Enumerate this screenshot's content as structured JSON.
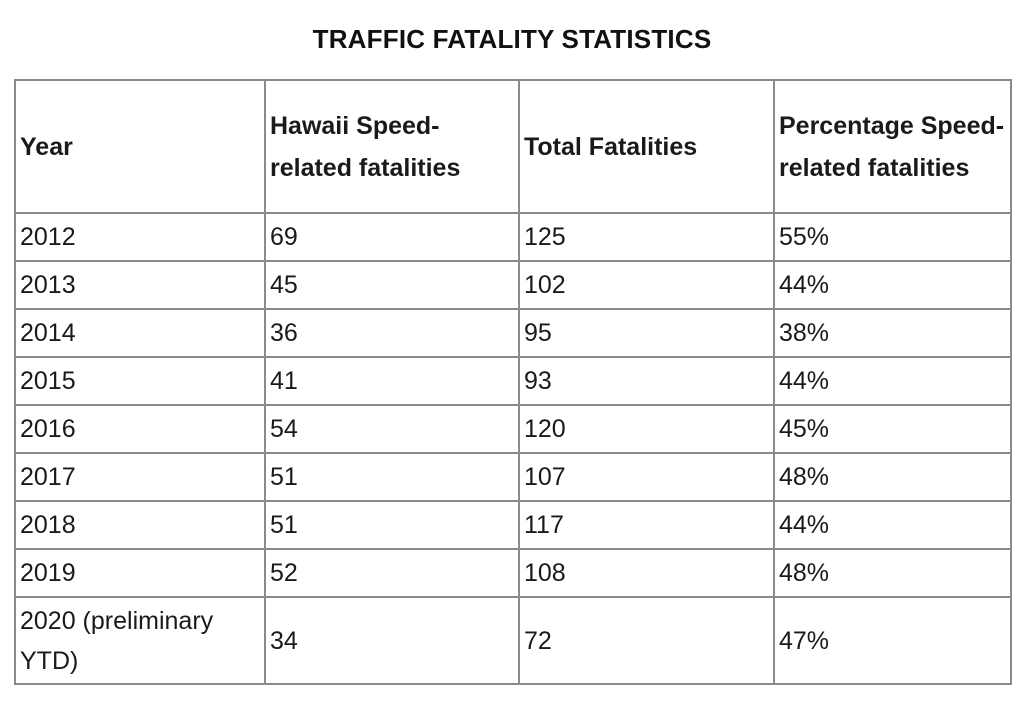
{
  "title": "TRAFFIC FATALITY STATISTICS",
  "table": {
    "headers": [
      "Year",
      "Hawaii Speed-related fatalities",
      "Total Fatalities",
      "Percentage Speed-related fatalities"
    ],
    "rows": [
      [
        "2012",
        "69",
        "125",
        "55%"
      ],
      [
        "2013",
        "45",
        "102",
        "44%"
      ],
      [
        "2014",
        "36",
        "95",
        "38%"
      ],
      [
        "2015",
        "41",
        "93",
        "44%"
      ],
      [
        "2016",
        "54",
        "120",
        "45%"
      ],
      [
        "2017",
        "51",
        "107",
        "48%"
      ],
      [
        "2018",
        "51",
        "117",
        "44%"
      ],
      [
        "2019",
        "52",
        "108",
        "48%"
      ],
      [
        "2020 (preliminary YTD)",
        "34",
        "72",
        "47%"
      ]
    ]
  },
  "colors": {
    "border": "#8a8a8a",
    "text": "#1a1a1a",
    "background": "#ffffff"
  }
}
